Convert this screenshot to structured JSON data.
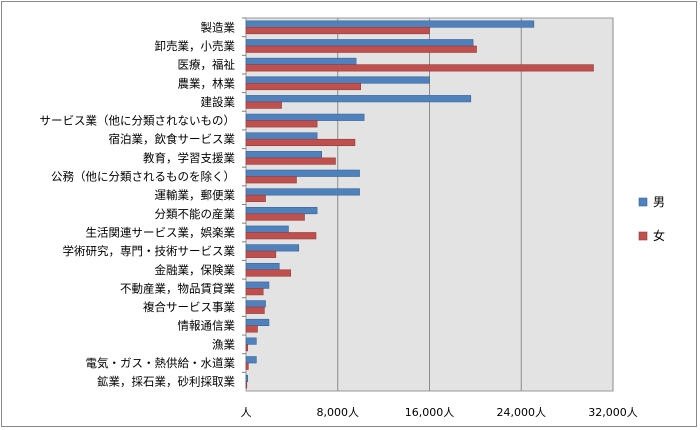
{
  "chart_data": {
    "type": "bar",
    "orientation": "horizontal",
    "categories": [
      "製造業",
      "卸売業，小売業",
      "医療，福祉",
      "農業，林業",
      "建設業",
      "サービス業（他に分類されないもの）",
      "宿泊業，飲食サービス業",
      "教育，学習支援業",
      "公務（他に分類されるものを除く）",
      "運輸業，郵便業",
      "分類不能の産業",
      "生活関連サービス業，娯楽業",
      "学術研究，専門・技術サービス業",
      "金融業，保険業",
      "不動産業，物品賃貸業",
      "複合サービス事業",
      "情報通信業",
      "漁業",
      "電気・ガス・熱供給・水道業",
      "鉱業，採石業，砂利採取業"
    ],
    "series": [
      {
        "name": "男",
        "color": "#4f81bd",
        "values": [
          25100,
          19800,
          9600,
          16000,
          19600,
          10300,
          6200,
          6600,
          9900,
          9900,
          6200,
          3700,
          4600,
          2900,
          2000,
          1700,
          2000,
          900,
          900,
          150
        ]
      },
      {
        "name": "女",
        "color": "#c0504d",
        "values": [
          16000,
          20100,
          30300,
          10000,
          3100,
          6200,
          9500,
          7800,
          4400,
          1700,
          5100,
          6100,
          2600,
          3900,
          1500,
          1600,
          1000,
          150,
          200,
          50
        ]
      }
    ],
    "x_ticks": [
      "人",
      "8,000人",
      "16,000人",
      "24,000人",
      "32,000人"
    ],
    "xlim": [
      0,
      32000
    ],
    "grid": true,
    "legend_position": "right"
  }
}
